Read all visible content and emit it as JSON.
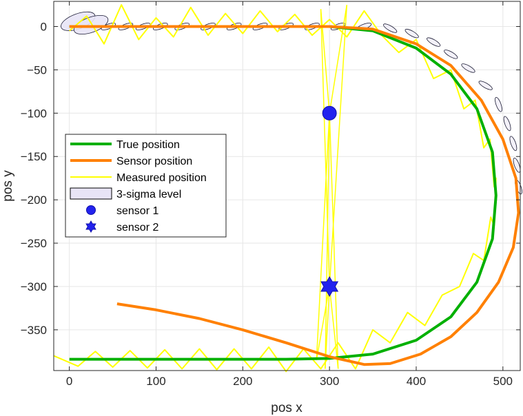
{
  "chart_data": {
    "type": "line",
    "title": "",
    "xlabel": "pos x",
    "ylabel": "pos y",
    "xlim": [
      -18,
      520
    ],
    "ylim": [
      -397,
      29
    ],
    "xticks": [
      0,
      100,
      200,
      300,
      400,
      500
    ],
    "yticks": [
      0,
      -50,
      -100,
      -150,
      -200,
      -250,
      -300,
      -350
    ],
    "grid": true,
    "legend_position": "middle-left",
    "colors": {
      "true_position": "#00b000",
      "sensor_position": "#ff8000",
      "measured_position": "#ffff00",
      "sigma_fill": "#e8e4f6",
      "sensor_marker": "#2222ee"
    },
    "series": [
      {
        "name": "True position",
        "x": [
          0,
          50,
          100,
          150,
          200,
          250,
          300,
          350,
          400,
          440,
          470,
          488,
          492,
          488,
          470,
          440,
          400,
          350,
          300,
          250,
          200,
          150,
          100,
          50,
          0
        ],
        "y": [
          0,
          0,
          0,
          0,
          0,
          0,
          0,
          -5,
          -25,
          -55,
          -95,
          -145,
          -195,
          -245,
          -295,
          -335,
          -362,
          -378,
          -383,
          -384,
          -384,
          -384,
          -384,
          -384,
          -384
        ]
      },
      {
        "name": "Sensor position",
        "x": [
          0,
          50,
          100,
          150,
          200,
          250,
          300,
          350,
          400,
          440,
          475,
          500,
          515,
          518,
          512,
          495,
          470,
          440,
          405,
          370,
          340,
          300,
          250,
          200,
          150,
          100,
          55
        ],
        "y": [
          0,
          0,
          0,
          0,
          0,
          0,
          0,
          -3,
          -20,
          -45,
          -85,
          -130,
          -175,
          -215,
          -255,
          -295,
          -330,
          -358,
          -378,
          -389,
          -390,
          -381,
          -365,
          -350,
          -337,
          -327,
          -320
        ]
      },
      {
        "name": "Measured position",
        "x": [
          0,
          20,
          40,
          60,
          80,
          100,
          120,
          140,
          160,
          180,
          200,
          220,
          240,
          260,
          280,
          300,
          320,
          340,
          360,
          380,
          400,
          420,
          440,
          455,
          468,
          478,
          485,
          490,
          492,
          490,
          486,
          478,
          466,
          450,
          430,
          410,
          390,
          370,
          350,
          330,
          310,
          290,
          270,
          250,
          230,
          210,
          190,
          170,
          150,
          130,
          110,
          90,
          70,
          50,
          30,
          10,
          -18
        ],
        "y": [
          -5,
          12,
          -20,
          25,
          -15,
          10,
          -12,
          22,
          -10,
          15,
          -8,
          18,
          -6,
          14,
          -10,
          8,
          -12,
          18,
          -10,
          -30,
          -15,
          -60,
          -50,
          -95,
          -85,
          -140,
          -130,
          -185,
          -175,
          -230,
          -220,
          -270,
          -262,
          -300,
          -310,
          -345,
          -330,
          -365,
          -350,
          -395,
          -365,
          -395,
          -372,
          -398,
          -370,
          -395,
          -372,
          -396,
          -372,
          -395,
          -373,
          -394,
          -374,
          -393,
          -375,
          -392,
          -380
        ]
      },
      {
        "name": "3-sigma level",
        "x": [
          10,
          25,
          45,
          65,
          85,
          105,
          130,
          160,
          190,
          220,
          250,
          280,
          310,
          340,
          370,
          395,
          420,
          440,
          460,
          480,
          495,
          505,
          512,
          516,
          518
        ],
        "y": [
          6,
          2,
          0,
          0,
          0,
          0,
          0,
          0,
          0,
          0,
          0,
          0,
          0,
          0,
          -2,
          -8,
          -18,
          -32,
          -48,
          -68,
          -90,
          -112,
          -135,
          -160,
          -185
        ]
      }
    ],
    "sensors": [
      {
        "name": "sensor 1",
        "marker": "circle",
        "x": 300,
        "y": -100
      },
      {
        "name": "sensor 2",
        "marker": "hexagram",
        "x": 300,
        "y": -300
      }
    ]
  }
}
